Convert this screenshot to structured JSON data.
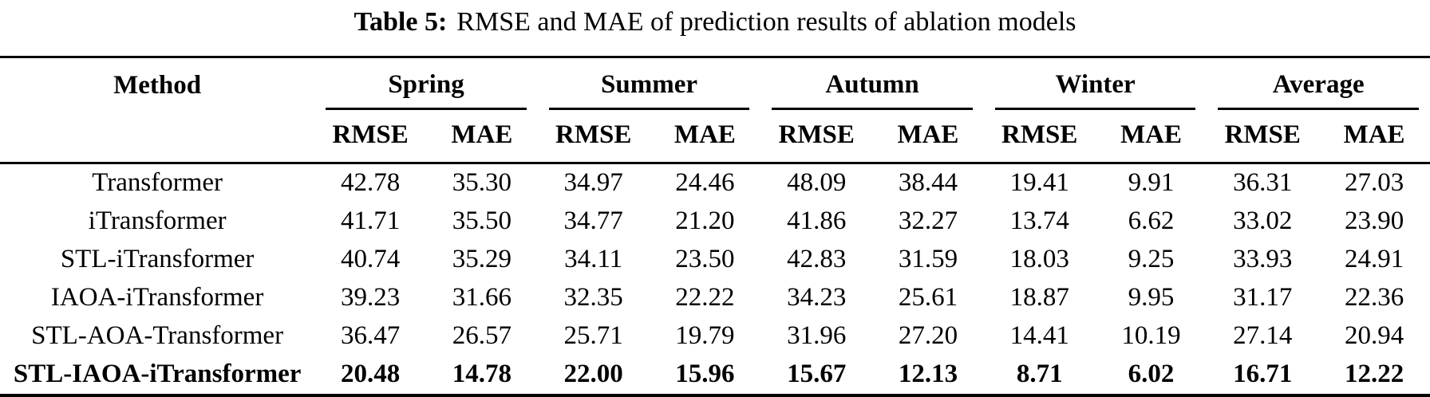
{
  "title": {
    "label": "Table 5:",
    "text": "RMSE and MAE of prediction results of ablation models"
  },
  "table": {
    "method_header": "Method",
    "groups": [
      "Spring",
      "Summer",
      "Autumn",
      "Winter",
      "Average"
    ],
    "metrics": [
      "RMSE",
      "MAE"
    ],
    "rows": [
      {
        "method": "Transformer",
        "bold": false,
        "values": [
          "42.78",
          "35.30",
          "34.97",
          "24.46",
          "48.09",
          "38.44",
          "19.41",
          "9.91",
          "36.31",
          "27.03"
        ]
      },
      {
        "method": "iTransformer",
        "bold": false,
        "values": [
          "41.71",
          "35.50",
          "34.77",
          "21.20",
          "41.86",
          "32.27",
          "13.74",
          "6.62",
          "33.02",
          "23.90"
        ]
      },
      {
        "method": "STL-iTransformer",
        "bold": false,
        "values": [
          "40.74",
          "35.29",
          "34.11",
          "23.50",
          "42.83",
          "31.59",
          "18.03",
          "9.25",
          "33.93",
          "24.91"
        ]
      },
      {
        "method": "IAOA-iTransformer",
        "bold": false,
        "values": [
          "39.23",
          "31.66",
          "32.35",
          "22.22",
          "34.23",
          "25.61",
          "18.87",
          "9.95",
          "31.17",
          "22.36"
        ]
      },
      {
        "method": "STL-AOA-Transformer",
        "bold": false,
        "values": [
          "36.47",
          "26.57",
          "25.71",
          "19.79",
          "31.96",
          "27.20",
          "14.41",
          "10.19",
          "27.14",
          "20.94"
        ]
      },
      {
        "method": "STL-IAOA-iTransformer",
        "bold": true,
        "values": [
          "20.48",
          "14.78",
          "22.00",
          "15.96",
          "15.67",
          "12.13",
          "8.71",
          "6.02",
          "16.71",
          "12.22"
        ]
      }
    ]
  }
}
